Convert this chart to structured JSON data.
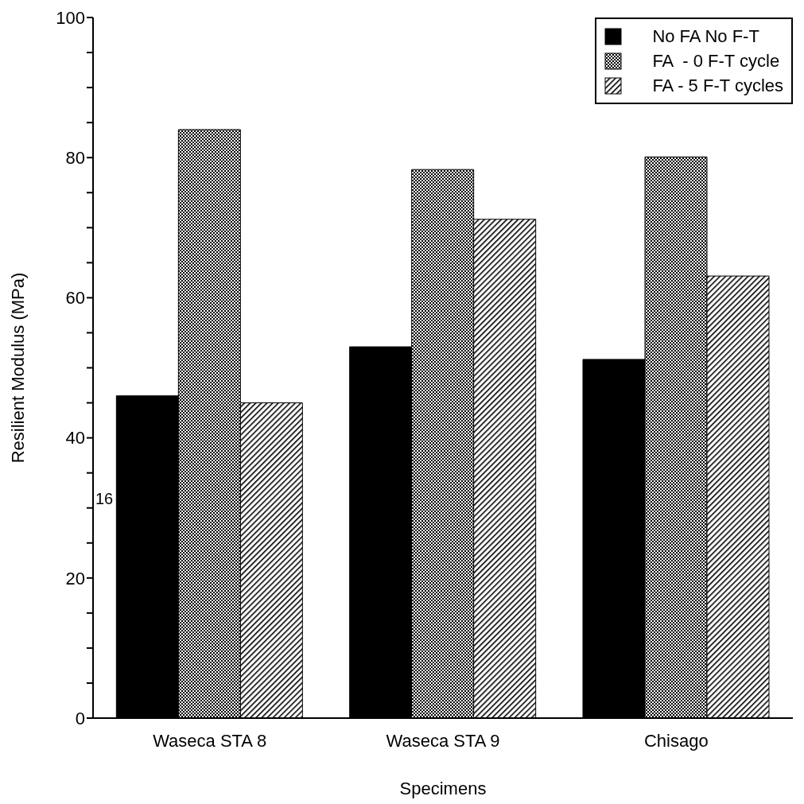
{
  "chart_data": {
    "type": "bar",
    "xlabel": "Specimens",
    "ylabel": "Resilient Modulus (MPa)",
    "categories": [
      "Waseca STA 8",
      "Waseca STA 9",
      "Chisago"
    ],
    "series": [
      {
        "name": "No FA No F-T",
        "color": "#000000",
        "values": [
          46,
          53,
          51.2
        ]
      },
      {
        "name": "FA  - 0 F-T cycle",
        "color": "#000000",
        "values": [
          84,
          78.3,
          80.1
        ]
      },
      {
        "name": "FA - 5 F-T cycles",
        "color": "#000000",
        "values": [
          45,
          71.2,
          63.1
        ]
      }
    ],
    "ylim": [
      0,
      100
    ],
    "yticks": [
      0,
      {
        "value": 5,
        "label": null
      },
      {
        "value": 10,
        "label": null
      },
      {
        "value": 15,
        "label": null
      },
      20,
      {
        "value": 25,
        "label": null
      },
      {
        "value": 30,
        "label": null
      },
      {
        "value": 35,
        "label": null
      },
      40,
      {
        "value": 45,
        "label": null
      },
      {
        "value": 50,
        "label": null
      },
      {
        "value": 55,
        "label": null
      },
      60,
      {
        "value": 65,
        "label": null
      },
      {
        "value": 70,
        "label": null
      },
      {
        "value": 75,
        "label": null
      },
      80,
      {
        "value": 85,
        "label": null
      },
      {
        "value": 90,
        "label": null
      },
      {
        "value": 95,
        "label": null
      },
      100
    ],
    "grid": false,
    "legend": "top right",
    "annotations": [
      "16"
    ]
  }
}
